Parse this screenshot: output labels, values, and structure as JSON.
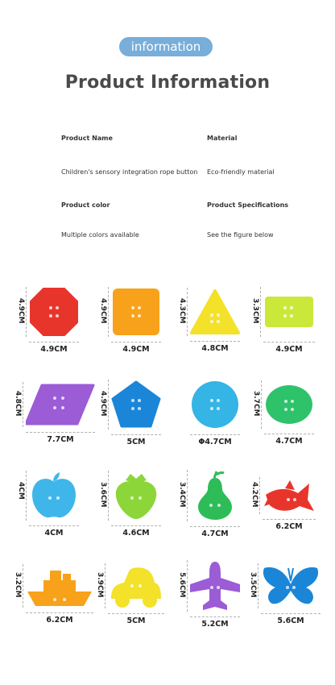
{
  "header": {
    "badge": "information",
    "title": "Product Information"
  },
  "info": {
    "product_name_label": "Product Name",
    "product_name_value": "Children's sensory integration rope button",
    "material_label": "Material",
    "material_value": "Eco-friendly material",
    "color_label": "Product color",
    "color_value": "Multiple colors available",
    "spec_label": "Product Specifications",
    "spec_value": "See the figure below"
  },
  "buttons": [
    {
      "name": "octagon",
      "color": "#e8352c",
      "height": "4.9CM",
      "width": "4.9CM"
    },
    {
      "name": "square",
      "color": "#f7a21a",
      "height": "4.9CM",
      "width": "4.9CM"
    },
    {
      "name": "triangle",
      "color": "#f3e12a",
      "height": "4.3CM",
      "width": "4.8CM"
    },
    {
      "name": "rectangle",
      "color": "#c9e83a",
      "height": "3.3CM",
      "width": "4.9CM"
    },
    {
      "name": "rhombus",
      "color": "#9b5cd6",
      "height": "4.8CM",
      "width": "7.7CM"
    },
    {
      "name": "pentagon",
      "color": "#1b86d8",
      "height": "4.9CM",
      "width": "5CM"
    },
    {
      "name": "circle",
      "color": "#35b4e6",
      "height": "",
      "width": "Φ4.7CM"
    },
    {
      "name": "oval",
      "color": "#2ec36b",
      "height": "3.7CM",
      "width": "4.7CM"
    },
    {
      "name": "apple",
      "color": "#3fb6ea",
      "height": "4CM",
      "width": "4CM"
    },
    {
      "name": "strawberry",
      "color": "#8cd63a",
      "height": "3.6CM",
      "width": "4.6CM"
    },
    {
      "name": "pear",
      "color": "#2ebc58",
      "height": "3.4CM",
      "width": "4.7CM"
    },
    {
      "name": "fish",
      "color": "#e8352c",
      "height": "4.2CM",
      "width": "6.2CM"
    },
    {
      "name": "ship",
      "color": "#f7a21a",
      "height": "3.2CM",
      "width": "6.2CM"
    },
    {
      "name": "car",
      "color": "#f3e12a",
      "height": "3.9CM",
      "width": "5CM"
    },
    {
      "name": "airplane",
      "color": "#9b5cd6",
      "height": "5.6CM",
      "width": "5.2CM"
    },
    {
      "name": "butterfly",
      "color": "#1b86d8",
      "height": "3.5CM",
      "width": "5.6CM"
    }
  ]
}
